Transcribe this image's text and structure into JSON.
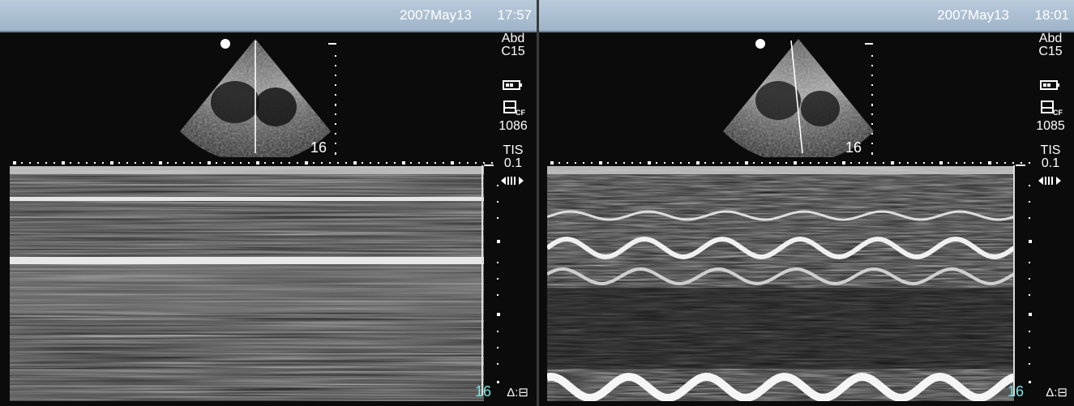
{
  "panels": [
    {
      "date": "2007May13",
      "time": "17:57",
      "preset": "Abd",
      "probe": "C15",
      "frame_count": "1086",
      "tis_label": "TIS",
      "tis_value": "0.1",
      "depth_fan": "16",
      "depth_mmode": "16",
      "delta_label": "Δ:"
    },
    {
      "date": "2007May13",
      "time": "18:01",
      "preset": "Abd",
      "probe": "C15",
      "frame_count": "1085",
      "tis_label": "TIS",
      "tis_value": "0.1",
      "depth_fan": "16",
      "depth_mmode": "16",
      "delta_label": "Δ:"
    }
  ],
  "icons": {
    "battery": "battery-icon",
    "storage": "storage-cf-icon",
    "cine": "cine-loop-icon",
    "freeze": "freeze-icon"
  }
}
